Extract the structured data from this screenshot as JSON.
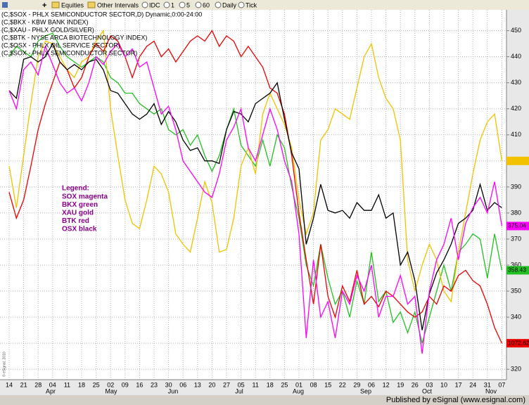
{
  "toolbar": {
    "items": [
      "Equities",
      "Other Intervals",
      "IDC",
      "1",
      "5",
      "60",
      "Daily",
      "Tick"
    ]
  },
  "footer": "Published by eSignal (www.esignal.com)",
  "copyright": "© eSignal, 2010",
  "chart_data": {
    "type": "line",
    "title": "(C,$SOX - PHLX SEMICONDUCTOR SECTOR,D) Dynamic,0:00-24:00",
    "categories": [
      "14",
      null,
      "21",
      null,
      "28",
      null,
      "04",
      null,
      "11",
      null,
      "18",
      null,
      "25",
      null,
      "02",
      null,
      "09",
      null,
      "16",
      null,
      "23",
      null,
      "30",
      null,
      "06",
      null,
      "13",
      null,
      "20",
      null,
      "27",
      null,
      "05",
      null,
      "11",
      null,
      "18",
      null,
      "25",
      null,
      "01",
      null,
      "08",
      null,
      "15",
      null,
      "22",
      null,
      "29",
      null,
      "06",
      null,
      "12",
      null,
      "19",
      null,
      "26",
      null,
      "03",
      null,
      "10",
      null,
      "17",
      null,
      "24",
      null,
      "31",
      null,
      "07"
    ],
    "months": [
      "Apr",
      "May",
      "Jun",
      "Jul",
      "Aug",
      "Sep",
      "Oct",
      "Nov"
    ],
    "ylim": [
      316,
      458
    ],
    "yticks": [
      320,
      330,
      340,
      350,
      360,
      370,
      380,
      390,
      400,
      410,
      420,
      430,
      440,
      450
    ],
    "grid": true,
    "legend": {
      "title": "Legend:",
      "entries": [
        "SOX magenta",
        "BKX green",
        "XAU gold",
        "BTK red",
        "OSX black"
      ]
    },
    "series": [
      {
        "name": "(C,$BKX - KBW BANK INDEX)",
        "color": "#22c022",
        "last_price": "358.43",
        "values": [
          440,
          444,
          442,
          440,
          446,
          448,
          449,
          444,
          440,
          438,
          436,
          438,
          440,
          438,
          432,
          430,
          426,
          426,
          422,
          420,
          418,
          420,
          412,
          410,
          412,
          406,
          410,
          402,
          396,
          402,
          412,
          420,
          406,
          402,
          398,
          408,
          398,
          410,
          405,
          390,
          378,
          360,
          352,
          368,
          355,
          345,
          350,
          340,
          354,
          345,
          365,
          346,
          350,
          338,
          342,
          334,
          342,
          330,
          340,
          350,
          360,
          350,
          365,
          368,
          372,
          370,
          355,
          372,
          358
        ]
      },
      {
        "name": "(C,$XAU - PHLX GOLD/SILVER)",
        "color": "#f2c200",
        "last_price": null,
        "values": [
          398,
          382,
          402,
          422,
          440,
          446,
          445,
          440,
          435,
          432,
          438,
          440,
          446,
          450,
          420,
          402,
          385,
          376,
          374,
          385,
          398,
          395,
          388,
          372,
          368,
          365,
          378,
          392,
          384,
          365,
          366,
          378,
          398,
          405,
          395,
          418,
          426,
          420,
          414,
          405,
          385,
          372,
          380,
          408,
          412,
          420,
          418,
          416,
          428,
          440,
          445,
          432,
          424,
          420,
          408,
          362,
          350,
          360,
          368,
          362,
          350,
          346,
          365,
          380,
          395,
          408,
          415,
          418,
          400
        ]
      },
      {
        "name": "(C,$BTK - NYSE ARCA BIOTECHNOLOGY INDEX)",
        "color": "#ee0000",
        "last_price": "1072.62",
        "values": [
          388,
          378,
          385,
          398,
          412,
          422,
          430,
          438,
          435,
          428,
          432,
          440,
          445,
          442,
          448,
          446,
          440,
          432,
          440,
          444,
          446,
          440,
          443,
          438,
          442,
          446,
          448,
          446,
          450,
          444,
          448,
          446,
          440,
          444,
          440,
          436,
          428,
          426,
          418,
          402,
          380,
          362,
          345,
          368,
          348,
          340,
          352,
          346,
          358,
          345,
          348,
          344,
          350,
          348,
          345,
          342,
          340,
          342,
          348,
          345,
          352,
          350,
          356,
          358,
          354,
          352,
          345,
          336,
          330
        ]
      },
      {
        "name": "(C,$OSX - PHLX OIL SERVICE SECTOR)",
        "color": "#000000",
        "last_price": null,
        "values": [
          427,
          424,
          439,
          440,
          438,
          440,
          445,
          438,
          435,
          437,
          435,
          438,
          439,
          435,
          427,
          426,
          422,
          418,
          416,
          418,
          422,
          414,
          419,
          415,
          408,
          404,
          405,
          400,
          400,
          399,
          412,
          419,
          418,
          415,
          422,
          424,
          426,
          430,
          416,
          403,
          397,
          368,
          378,
          391,
          381,
          380,
          381,
          378,
          384,
          381,
          381,
          387,
          378,
          380,
          360,
          365,
          354,
          335,
          349,
          357,
          362,
          368,
          376,
          378,
          381,
          391,
          381,
          384,
          382
        ]
      },
      {
        "name": "(C,$SOX - PHLX SEMICONDUCTOR SECTOR)",
        "color": "#ff00ff",
        "last_price": "375.04",
        "values": [
          427,
          420,
          435,
          438,
          433,
          444,
          437,
          430,
          426,
          428,
          423,
          430,
          440,
          437,
          442,
          445,
          440,
          443,
          436,
          438,
          428,
          418,
          421,
          412,
          400,
          396,
          392,
          388,
          386,
          395,
          408,
          413,
          420,
          405,
          400,
          410,
          420,
          412,
          400,
          392,
          372,
          332,
          362,
          340,
          346,
          332,
          350,
          345,
          356,
          350,
          360,
          340,
          348,
          348,
          356,
          345,
          348,
          326,
          350,
          362,
          368,
          378,
          362,
          376,
          382,
          386,
          380,
          392,
          375
        ]
      }
    ]
  }
}
